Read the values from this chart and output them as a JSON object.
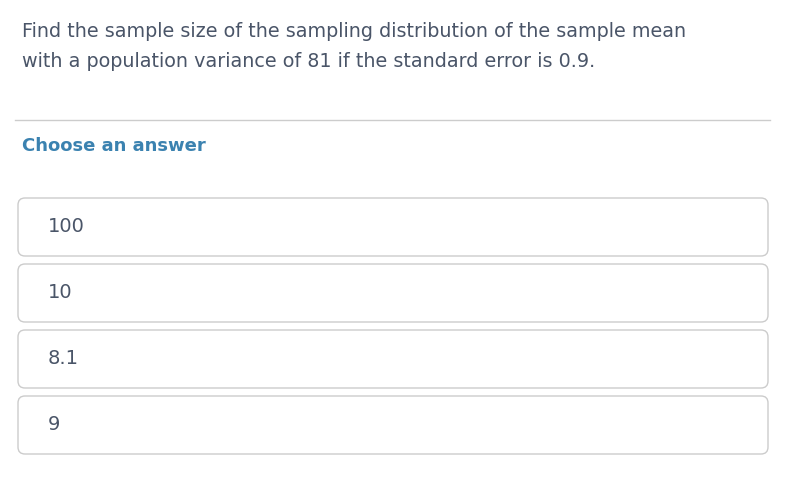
{
  "question_line1": "Find the sample size of the sampling distribution of the sample mean",
  "question_line2": "with a population variance of 81 if the standard error is 0.9.",
  "choose_label": "Choose an answer",
  "choices": [
    "100",
    "10",
    "8.1",
    "9"
  ],
  "bg_color": "#ffffff",
  "question_text_color": "#4a5568",
  "choose_label_color": "#3b82b0",
  "choice_text_color": "#4a5568",
  "box_border_color": "#cccccc",
  "box_fill_color": "#ffffff",
  "divider_color": "#cccccc",
  "question_fontsize": 13.8,
  "choose_fontsize": 13.0,
  "choice_fontsize": 14.0,
  "fig_width": 7.85,
  "fig_height": 5.04,
  "dpi": 100
}
